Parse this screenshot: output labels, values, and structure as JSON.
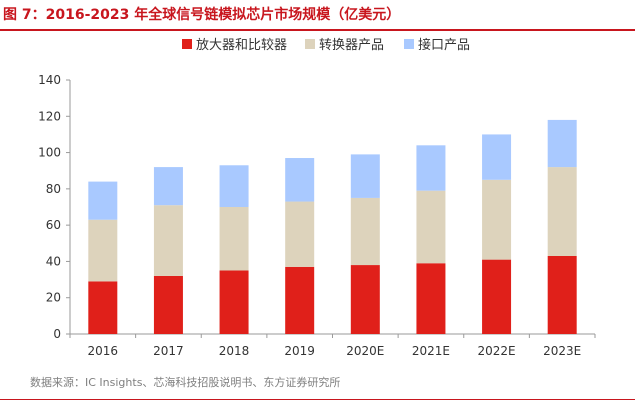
{
  "title": "图 7：2016-2023 年全球信号链模拟芯片市场规模（亿美元）",
  "source": "数据来源：IC Insights、芯海科技招股说明书、东方证券研究所",
  "chart_data": {
    "type": "bar",
    "stacked": true,
    "categories": [
      "2016",
      "2017",
      "2018",
      "2019",
      "2020E",
      "2021E",
      "2022E",
      "2023E"
    ],
    "series": [
      {
        "name": "放大器和比较器",
        "color": "#e0201a",
        "values": [
          29,
          32,
          35,
          37,
          38,
          39,
          41,
          43
        ]
      },
      {
        "name": "转换器产品",
        "color": "#ddd3bc",
        "values": [
          34,
          39,
          35,
          36,
          37,
          40,
          44,
          49
        ]
      },
      {
        "name": "接口产品",
        "color": "#a9c9ff",
        "values": [
          21,
          21,
          23,
          24,
          24,
          25,
          25,
          26
        ]
      }
    ],
    "ylim": [
      0,
      140
    ],
    "yticks": [
      "0",
      "20",
      "40",
      "60",
      "80",
      "100",
      "120",
      "140"
    ],
    "legend": "top-center",
    "title": "",
    "xlabel": "",
    "ylabel": ""
  }
}
